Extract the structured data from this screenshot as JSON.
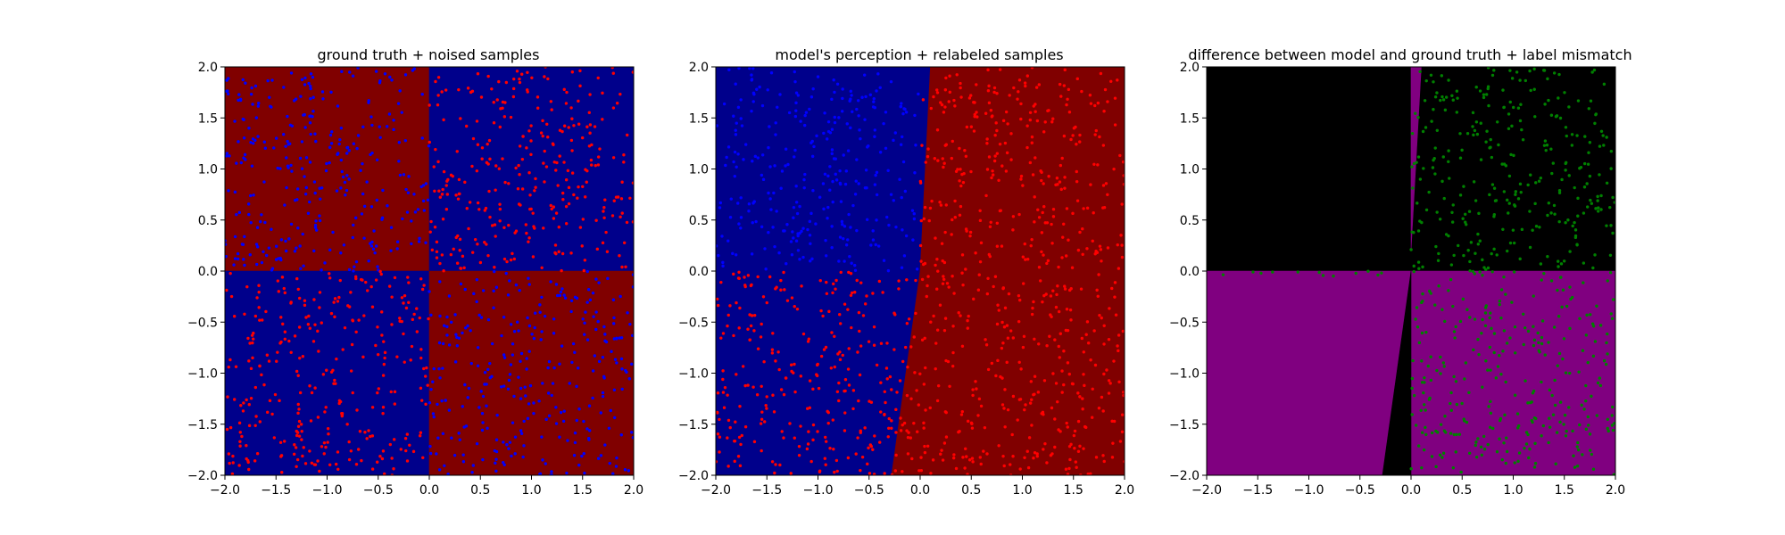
{
  "figure": {
    "background": "#ffffff",
    "colors": {
      "dark_red": "#800000",
      "dark_blue": "#00008b",
      "black": "#000000",
      "purple": "#800080",
      "red_point": "#ff0000",
      "blue_point": "#0000ff",
      "green_point": "#008000"
    }
  },
  "chart_data": [
    {
      "type": "scatter",
      "title": "ground truth + noised samples",
      "xlim": [
        -2.0,
        2.0
      ],
      "ylim": [
        -2.0,
        2.0
      ],
      "xticks": [
        "−2.0",
        "−1.5",
        "−1.0",
        "−0.5",
        "0.0",
        "0.5",
        "1.0",
        "1.5",
        "2.0"
      ],
      "yticks": [
        "−2.0",
        "−1.5",
        "−1.0",
        "−0.5",
        "0.0",
        "0.5",
        "1.0",
        "1.5",
        "2.0"
      ],
      "grid": false,
      "regions": [
        {
          "polygon": [
            [
              -2,
              0
            ],
            [
              0,
              0
            ],
            [
              0,
              2
            ],
            [
              -2,
              2
            ]
          ],
          "color": "#800000"
        },
        {
          "polygon": [
            [
              0,
              0
            ],
            [
              2,
              0
            ],
            [
              2,
              2
            ],
            [
              0,
              2
            ]
          ],
          "color": "#00008b"
        },
        {
          "polygon": [
            [
              -2,
              -2
            ],
            [
              0,
              -2
            ],
            [
              0,
              0
            ],
            [
              -2,
              0
            ]
          ],
          "color": "#00008b"
        },
        {
          "polygon": [
            [
              0,
              -2
            ],
            [
              2,
              -2
            ],
            [
              2,
              0
            ],
            [
              0,
              0
            ]
          ],
          "color": "#800000"
        }
      ],
      "series": [
        {
          "color": "#0000ff",
          "count": 300,
          "xrange": [
            -2,
            0
          ],
          "yrange": [
            0,
            2
          ],
          "seed": 11
        },
        {
          "color": "#ff0000",
          "count": 300,
          "xrange": [
            0,
            2
          ],
          "yrange": [
            0,
            2
          ],
          "seed": 12
        },
        {
          "color": "#ff0000",
          "count": 300,
          "xrange": [
            -2,
            0
          ],
          "yrange": [
            -2,
            0
          ],
          "seed": 13
        },
        {
          "color": "#0000ff",
          "count": 300,
          "xrange": [
            0,
            2
          ],
          "yrange": [
            -2,
            0
          ],
          "seed": 14
        }
      ]
    },
    {
      "type": "scatter",
      "title": "model's perception + relabeled samples",
      "xlim": [
        -2.0,
        2.0
      ],
      "ylim": [
        -2.0,
        2.0
      ],
      "xticks": [
        "−2.0",
        "−1.5",
        "−1.0",
        "−0.5",
        "0.0",
        "0.5",
        "1.0",
        "1.5",
        "2.0"
      ],
      "yticks": [
        "−2.0",
        "−1.5",
        "−1.0",
        "−0.5",
        "0.0",
        "0.5",
        "1.0",
        "1.5",
        "2.0"
      ],
      "grid": false,
      "regions": [
        {
          "polygon": [
            [
              -2,
              -2
            ],
            [
              -0.28,
              -2
            ],
            [
              0.0,
              0.0
            ],
            [
              0.1,
              2
            ],
            [
              -2,
              2
            ]
          ],
          "color": "#00008b"
        },
        {
          "polygon": [
            [
              -0.28,
              -2
            ],
            [
              2,
              -2
            ],
            [
              2,
              2
            ],
            [
              0.1,
              2
            ],
            [
              0.0,
              0.0
            ]
          ],
          "color": "#800000"
        }
      ],
      "series": [
        {
          "color": "#0000ff",
          "count": 300,
          "xrange": [
            -2,
            0
          ],
          "yrange": [
            0,
            2
          ],
          "seed": 21
        },
        {
          "color": "#ff0000",
          "count": 300,
          "xrange": [
            0,
            2
          ],
          "yrange": [
            0,
            2
          ],
          "seed": 22
        },
        {
          "color": "#ff0000",
          "count": 300,
          "xrange": [
            -2,
            0
          ],
          "yrange": [
            -2,
            0
          ],
          "seed": 23
        },
        {
          "color": "#ff0000",
          "count": 300,
          "xrange": [
            0,
            2
          ],
          "yrange": [
            -2,
            0
          ],
          "seed": 24
        }
      ]
    },
    {
      "type": "scatter",
      "title": "difference between model and ground truth + label mismatch",
      "xlim": [
        -2.0,
        2.0
      ],
      "ylim": [
        -2.0,
        2.0
      ],
      "xticks": [
        "−2.0",
        "−1.5",
        "−1.0",
        "−0.5",
        "0.0",
        "0.5",
        "1.0",
        "1.5",
        "2.0"
      ],
      "yticks": [
        "−2.0",
        "−1.5",
        "−1.0",
        "−0.5",
        "0.0",
        "0.5",
        "1.0",
        "1.5",
        "2.0"
      ],
      "grid": false,
      "regions": [
        {
          "polygon": [
            [
              -2,
              0
            ],
            [
              2,
              0
            ],
            [
              2,
              2
            ],
            [
              -2,
              2
            ]
          ],
          "color": "#000000"
        },
        {
          "polygon": [
            [
              -2,
              -2
            ],
            [
              2,
              -2
            ],
            [
              2,
              0
            ],
            [
              -2,
              0
            ]
          ],
          "color": "#800080"
        },
        {
          "polygon": [
            [
              -0.28,
              -2
            ],
            [
              0.0,
              -2
            ],
            [
              0.0,
              0.0
            ]
          ],
          "color": "#000000"
        },
        {
          "polygon": [
            [
              0.0,
              0.2
            ],
            [
              0.1,
              2
            ],
            [
              0.0,
              2
            ]
          ],
          "color": "#800080"
        }
      ],
      "series": [
        {
          "color": "#008000",
          "count": 300,
          "xrange": [
            0,
            2
          ],
          "yrange": [
            0,
            2
          ],
          "seed": 31
        },
        {
          "color": "#008000",
          "count": 300,
          "xrange": [
            0,
            2
          ],
          "yrange": [
            -2,
            0
          ],
          "seed": 32
        },
        {
          "color": "#008000",
          "count": 12,
          "xrange": [
            -2,
            0
          ],
          "yrange": [
            -0.05,
            0
          ],
          "seed": 33
        }
      ]
    }
  ]
}
